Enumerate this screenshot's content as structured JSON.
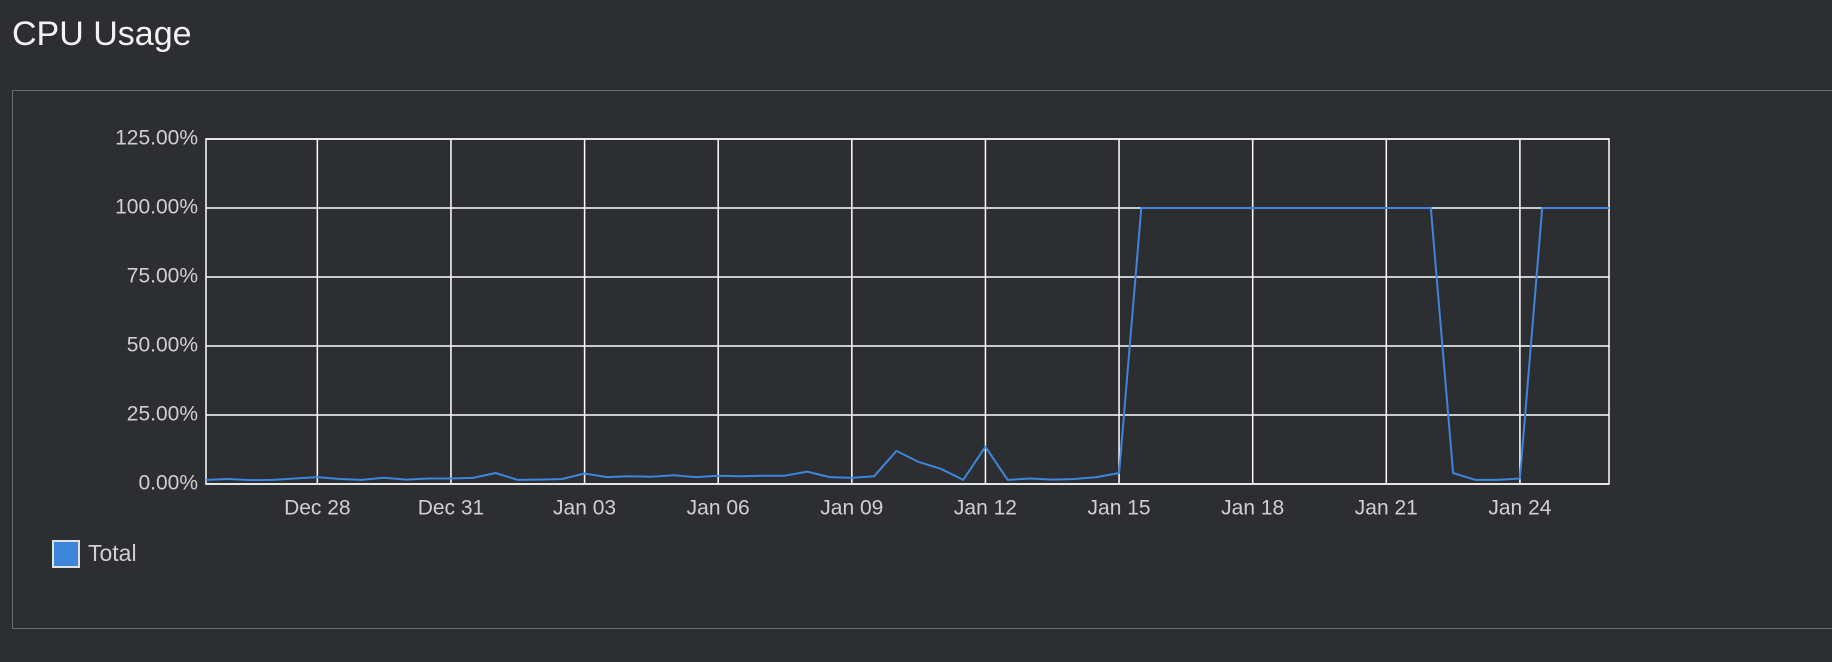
{
  "chart_data": {
    "type": "line",
    "title": "CPU Usage",
    "categories": [
      null,
      null,
      null,
      null,
      null,
      "Dec 28",
      null,
      null,
      null,
      null,
      null,
      "Dec 31",
      null,
      null,
      null,
      null,
      null,
      "Jan 03",
      null,
      null,
      null,
      null,
      null,
      "Jan 06",
      null,
      null,
      null,
      null,
      null,
      "Jan 09",
      null,
      null,
      null,
      null,
      null,
      "Jan 12",
      null,
      null,
      null,
      null,
      null,
      "Jan 15",
      null,
      null,
      null,
      null,
      null,
      "Jan 18",
      null,
      null,
      null,
      null,
      null,
      "Jan 21",
      null,
      null,
      null,
      null,
      null,
      "Jan 24",
      null,
      null,
      null,
      null
    ],
    "series": [
      {
        "name": "Total",
        "color": "#3d86dc",
        "values": [
          1.5,
          1.8,
          1.4,
          1.5,
          2.0,
          2.5,
          1.8,
          1.5,
          2.3,
          1.6,
          2.0,
          2.0,
          2.2,
          4.0,
          1.5,
          1.6,
          1.8,
          3.8,
          2.5,
          2.8,
          2.6,
          3.2,
          2.5,
          3.0,
          2.8,
          3.0,
          3.0,
          4.5,
          2.5,
          2.2,
          2.8,
          12.0,
          8.0,
          5.5,
          1.5,
          13.5,
          1.5,
          2.0,
          1.6,
          1.8,
          2.5,
          4.0,
          100,
          100,
          100,
          100,
          100,
          100,
          100,
          100,
          100,
          100,
          100,
          100,
          100,
          100,
          4.0,
          1.5,
          1.5,
          2.0,
          100,
          100,
          100,
          100
        ]
      }
    ],
    "ylim": [
      0,
      125
    ],
    "yticks": [
      {
        "value": 0,
        "label": "0.00%"
      },
      {
        "value": 25,
        "label": "25.00%"
      },
      {
        "value": 50,
        "label": "50.00%"
      },
      {
        "value": 75,
        "label": "75.00%"
      },
      {
        "value": 100,
        "label": "100.00%"
      },
      {
        "value": 125,
        "label": "125.00%"
      }
    ],
    "grid": true,
    "legend": "bottom-left"
  }
}
